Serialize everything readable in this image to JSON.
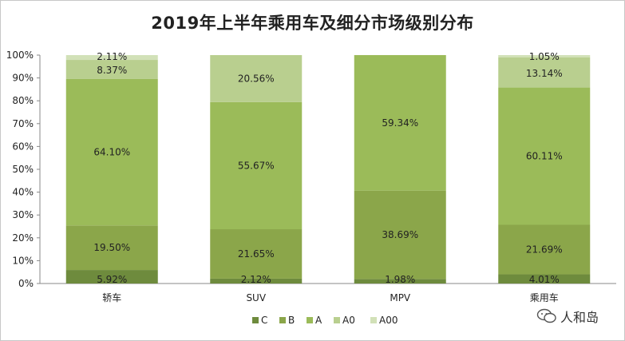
{
  "chart_data": {
    "type": "bar",
    "stacked": true,
    "percent": true,
    "title": "2019年上半年乘用车及细分市场级别分布",
    "categories": [
      "轿车",
      "SUV",
      "MPV",
      "乘用车"
    ],
    "series": [
      {
        "name": "C",
        "color": "#6e8b3d",
        "values": [
          5.92,
          2.12,
          1.98,
          4.01
        ],
        "labels": [
          "5.92%",
          "2.12%",
          "1.98%",
          "4.01%"
        ]
      },
      {
        "name": "B",
        "color": "#8ba64a",
        "values": [
          19.5,
          21.65,
          38.69,
          21.69
        ],
        "labels": [
          "19.50%",
          "21.65%",
          "38.69%",
          "21.69%"
        ]
      },
      {
        "name": "A",
        "color": "#9bbb59",
        "values": [
          64.1,
          55.67,
          59.34,
          60.11
        ],
        "labels": [
          "64.10%",
          "55.67%",
          "59.34%",
          "60.11%"
        ]
      },
      {
        "name": "A0",
        "color": "#b9cf8f",
        "values": [
          8.37,
          20.56,
          0,
          13.14
        ],
        "labels": [
          "8.37%",
          "20.56%",
          "",
          "13.14%"
        ]
      },
      {
        "name": "A00",
        "color": "#d2e1b8",
        "values": [
          2.11,
          0,
          0,
          1.05
        ],
        "labels": [
          "2.11%",
          "",
          "",
          "1.05%"
        ]
      }
    ],
    "y_ticks": [
      "0%",
      "10%",
      "20%",
      "30%",
      "40%",
      "50%",
      "60%",
      "70%",
      "80%",
      "90%",
      "100%"
    ],
    "ylim": [
      0,
      100
    ],
    "grid": false,
    "legend_position": "bottom"
  },
  "watermark": {
    "text": "人和岛",
    "icon": "wechat-icon"
  }
}
